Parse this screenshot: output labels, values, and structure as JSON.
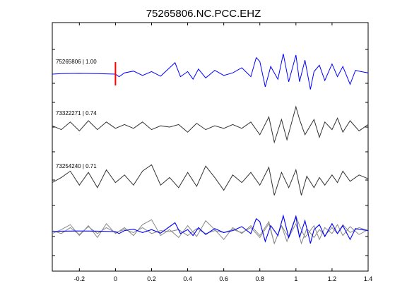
{
  "chart_data": {
    "type": "line",
    "title": "75265806.NC.PCC.EHZ",
    "xlabel": "",
    "ylabel": "",
    "xlim": [
      -0.35,
      1.4
    ],
    "x_ticks": [
      -0.2,
      0,
      0.2,
      0.4,
      0.6,
      0.8,
      1.0,
      1.2,
      1.4
    ],
    "x_tick_labels": [
      "-0.2",
      "0",
      "0.2",
      "0.4",
      "0.6",
      "0.8",
      "1",
      "1.2",
      "1.4"
    ],
    "grid": false,
    "pick_marker": {
      "x": 0,
      "color": "#ff0000"
    },
    "colors": {
      "master": "#0000ff",
      "correlated": "#333333",
      "overlay_gray": "#888888"
    },
    "series": [
      {
        "name": "75265806 | 1.00",
        "color": "#0000ff",
        "x": [
          -0.35,
          -0.3,
          -0.2,
          -0.1,
          0,
          0.02,
          0.05,
          0.1,
          0.15,
          0.2,
          0.25,
          0.3,
          0.33,
          0.36,
          0.4,
          0.43,
          0.46,
          0.5,
          0.55,
          0.6,
          0.65,
          0.7,
          0.75,
          0.78,
          0.8,
          0.83,
          0.86,
          0.9,
          0.93,
          0.96,
          1.0,
          1.02,
          1.05,
          1.08,
          1.1,
          1.13,
          1.16,
          1.2,
          1.23,
          1.26,
          1.3,
          1.33,
          1.36,
          1.4
        ],
        "y": [
          0,
          0.02,
          0.03,
          0.02,
          0,
          -0.1,
          0.05,
          0.12,
          -0.05,
          0.1,
          -0.08,
          0.25,
          0.45,
          -0.1,
          0.1,
          -0.2,
          0.2,
          -0.15,
          0.15,
          -0.05,
          0.05,
          0.25,
          -0.1,
          0.65,
          0.5,
          -0.5,
          0.3,
          -0.2,
          0.8,
          -0.3,
          0.75,
          -0.3,
          0.55,
          -0.6,
          0.1,
          0.35,
          -0.25,
          0.4,
          -0.1,
          0.3,
          -0.4,
          0.15,
          0.1,
          0.05
        ]
      },
      {
        "name": "73322271 | 0.74",
        "color": "#333333",
        "x": [
          -0.35,
          -0.3,
          -0.25,
          -0.2,
          -0.15,
          -0.1,
          -0.05,
          0,
          0.05,
          0.1,
          0.15,
          0.2,
          0.25,
          0.3,
          0.35,
          0.4,
          0.45,
          0.5,
          0.55,
          0.6,
          0.65,
          0.7,
          0.75,
          0.8,
          0.85,
          0.88,
          0.92,
          0.95,
          1.0,
          1.02,
          1.05,
          1.1,
          1.13,
          1.16,
          1.2,
          1.23,
          1.26,
          1.3,
          1.35,
          1.4
        ],
        "y": [
          0.05,
          -0.1,
          0.2,
          -0.15,
          0.25,
          -0.1,
          0.2,
          -0.05,
          0.1,
          -0.05,
          0.2,
          -0.1,
          0.05,
          0,
          0.1,
          -0.2,
          0.15,
          -0.1,
          0.05,
          -0.05,
          0.1,
          -0.05,
          0.2,
          -0.3,
          0.4,
          -0.6,
          0.3,
          -0.5,
          0.8,
          0.3,
          -0.3,
          0.3,
          -0.4,
          0.2,
          -0.1,
          0.35,
          -0.2,
          0.25,
          -0.15,
          0.1
        ]
      },
      {
        "name": "73254240 | 0.71",
        "color": "#333333",
        "x": [
          -0.35,
          -0.3,
          -0.25,
          -0.2,
          -0.15,
          -0.1,
          -0.05,
          0,
          0.05,
          0.1,
          0.15,
          0.2,
          0.25,
          0.3,
          0.35,
          0.4,
          0.45,
          0.5,
          0.55,
          0.6,
          0.65,
          0.7,
          0.75,
          0.8,
          0.85,
          0.88,
          0.92,
          0.96,
          1.0,
          1.03,
          1.06,
          1.1,
          1.13,
          1.16,
          1.2,
          1.23,
          1.26,
          1.3,
          1.35,
          1.4
        ],
        "y": [
          -0.1,
          0.1,
          0.35,
          -0.2,
          0.3,
          -0.3,
          0.4,
          -0.1,
          0.2,
          -0.2,
          0.35,
          0.6,
          -0.2,
          0.1,
          -0.3,
          0.3,
          -0.25,
          0.55,
          0.1,
          -0.4,
          0.2,
          -0.1,
          0.3,
          -0.2,
          0.5,
          -0.6,
          0.3,
          -0.3,
          0.4,
          -0.6,
          0.15,
          -0.3,
          0.1,
          -0.2,
          0.2,
          -0.1,
          0.35,
          -0.05,
          0.2,
          0.05
        ]
      }
    ]
  }
}
